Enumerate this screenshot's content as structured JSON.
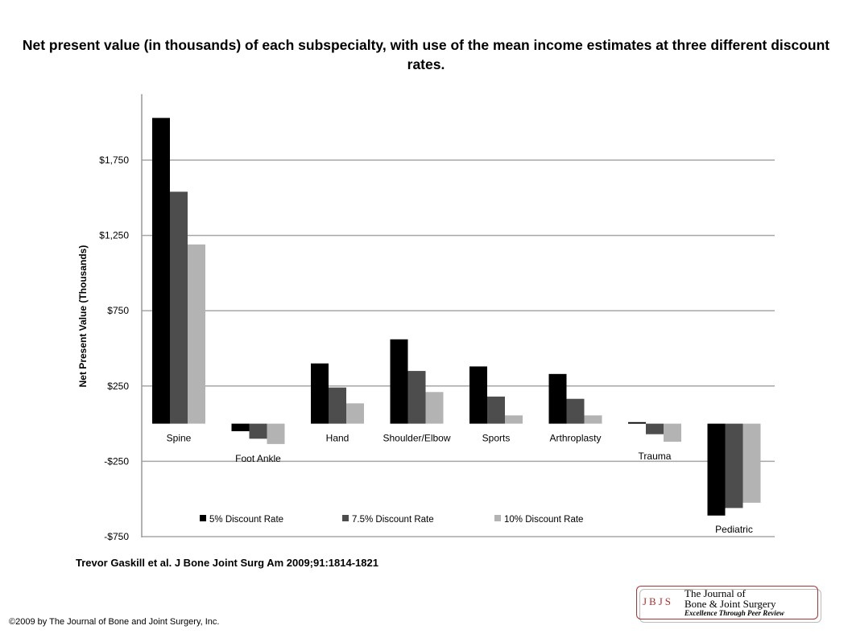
{
  "title": "Net present value (in thousands) of each subspecialty, with use of the mean income estimates at three different discount rates.",
  "citation": "Trevor Gaskill et al. J Bone Joint Surg Am 2009;91:1814-1821",
  "copyright": "©2009 by The Journal of Bone and Joint Surgery, Inc.",
  "logo": {
    "mark": "JBJS",
    "line1": "The Journal of",
    "line2": "Bone & Joint Surgery",
    "line3": "Excellence Through Peer Review"
  },
  "chart_data": {
    "type": "bar",
    "ylabel": "Net Present Value (Thousands)",
    "ylim": [
      -750,
      2210
    ],
    "yticks": [
      1750,
      1250,
      750,
      250,
      -250,
      -750
    ],
    "ytick_labels": [
      "$1,750",
      "$1,250",
      "$750",
      "$250",
      "-$250",
      "-$750"
    ],
    "grid": true,
    "legend_position": "bottom",
    "categories": [
      "Spine",
      "Foot Ankle",
      "Hand",
      "Shoulder/Elbow",
      "Sports",
      "Arthroplasty",
      "Trauma",
      "Pediatric"
    ],
    "series": [
      {
        "name": "5% Discount Rate",
        "color": "#000000",
        "values": [
          2030,
          -50,
          400,
          560,
          380,
          330,
          10,
          -610
        ]
      },
      {
        "name": "7.5% Discount Rate",
        "color": "#4d4d4d",
        "values": [
          1540,
          -100,
          240,
          350,
          180,
          165,
          -70,
          -560
        ]
      },
      {
        "name": "10% Discount Rate",
        "color": "#b3b3b3",
        "values": [
          1190,
          -135,
          135,
          210,
          55,
          55,
          -120,
          -525
        ]
      }
    ]
  }
}
